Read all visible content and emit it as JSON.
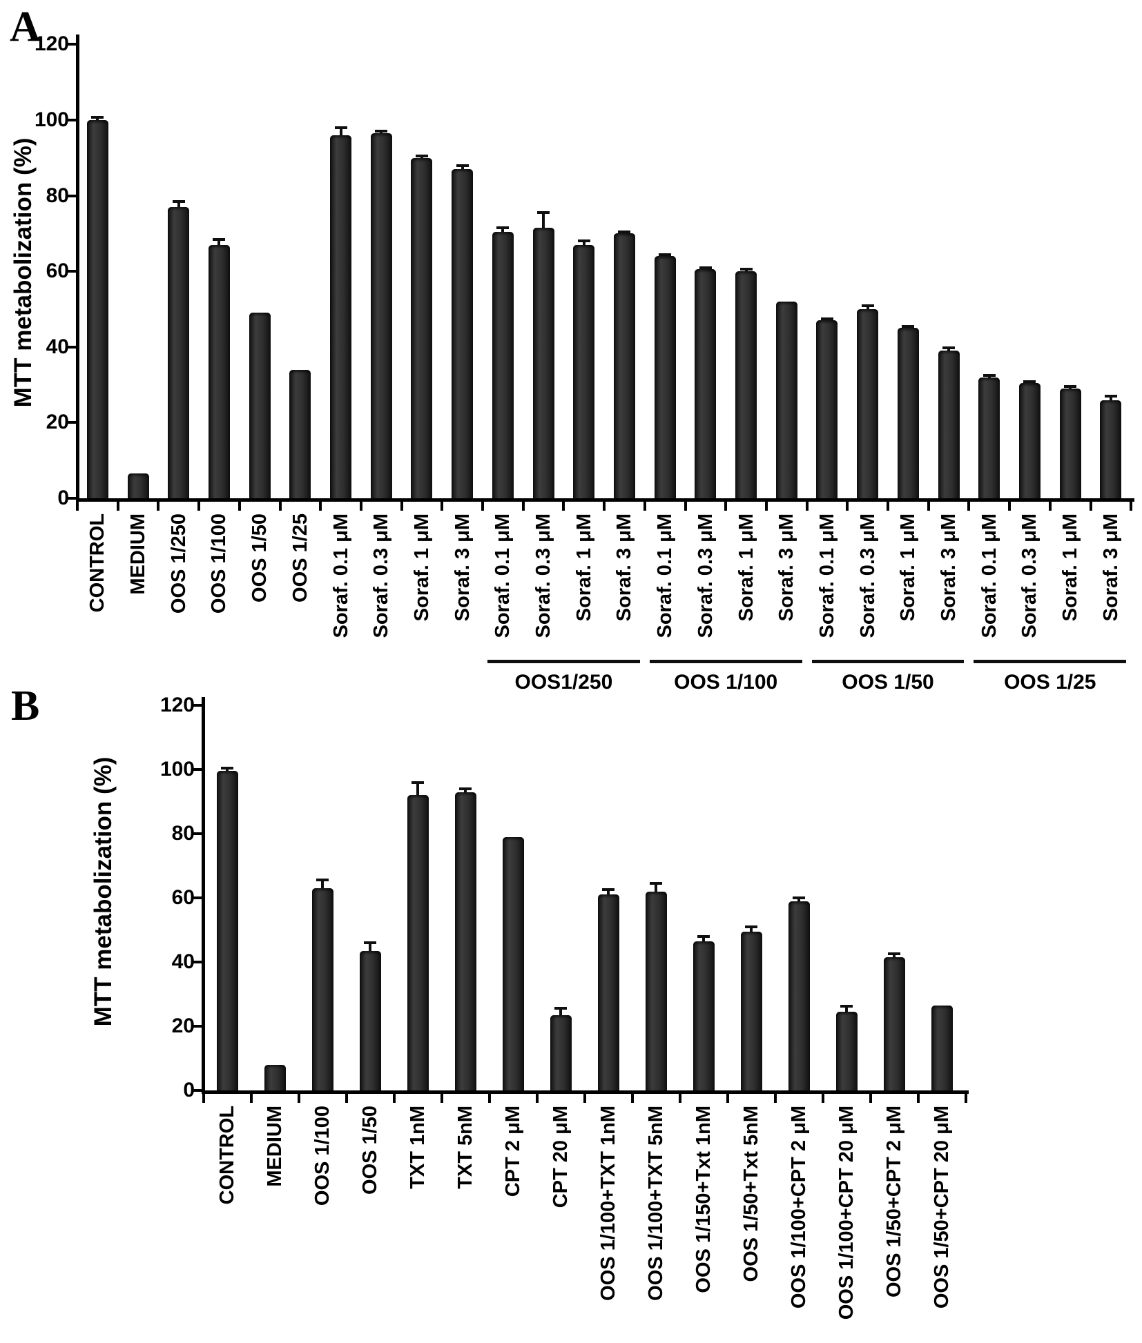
{
  "figure": {
    "background": "#ffffff",
    "bar_fill": "#2e2e2e",
    "bar_edge": "#0d0d0d",
    "axis_color": "#000000",
    "text_color": "#000000",
    "error_bar_color": "#0f0f0f"
  },
  "chart_data": [
    {
      "panel": "A",
      "type": "bar",
      "title": "",
      "xlabel": "",
      "ylabel": "MTT metabolization (%)",
      "ylim": [
        0,
        120
      ],
      "yticks": [
        0,
        20,
        40,
        60,
        80,
        100,
        120
      ],
      "grid": false,
      "legend": false,
      "error_bars": true,
      "categories": [
        "CONTROL",
        "MEDIUM",
        "OOS 1/250",
        "OOS 1/100",
        "OOS 1/50",
        "OOS 1/25",
        "Soraf. 0.1 μM",
        "Soraf. 0.3 μM",
        "Soraf. 1 μM",
        "Soraf. 3 μM",
        "Soraf. 0.1 μM",
        "Soraf. 0.3 μM",
        "Soraf. 1 μM",
        "Soraf. 3 μM",
        "Soraf. 0.1 μM",
        "Soraf. 0.3 μM",
        "Soraf. 1 μM",
        "Soraf. 3 μM",
        "Soraf. 0.1 μM",
        "Soraf. 0.3 μM",
        "Soraf. 1 μM",
        "Soraf. 3 μM",
        "Soraf. 0.1 μM",
        "Soraf. 0.3 μM",
        "Soraf. 1 μM",
        "Soraf. 3 μM"
      ],
      "values": [
        100,
        6.5,
        77,
        67,
        49,
        34,
        96,
        96.5,
        90,
        87,
        70.5,
        71.5,
        67,
        70,
        64,
        60.5,
        60,
        52,
        47,
        50,
        45,
        39,
        32,
        30.5,
        29,
        26
      ],
      "errors": [
        0.8,
        0,
        1.5,
        1.5,
        0,
        0,
        2,
        0.6,
        0.6,
        1,
        1,
        4,
        1,
        0.5,
        0.5,
        0.5,
        0.5,
        0,
        0.5,
        1,
        0.5,
        0.7,
        0.4,
        0.4,
        0.5,
        1
      ],
      "groups": [
        {
          "label": "OOS1/250",
          "from": 10,
          "to": 13
        },
        {
          "label": "OOS 1/100",
          "from": 14,
          "to": 17
        },
        {
          "label": "OOS 1/50",
          "from": 18,
          "to": 21
        },
        {
          "label": "OOS 1/25",
          "from": 22,
          "to": 25
        }
      ]
    },
    {
      "panel": "B",
      "type": "bar",
      "title": "",
      "xlabel": "",
      "ylabel": "MTT metabolization (%)",
      "ylim": [
        0,
        120
      ],
      "yticks": [
        0,
        20,
        40,
        60,
        80,
        100,
        120
      ],
      "grid": false,
      "legend": false,
      "error_bars": true,
      "categories": [
        "CONTROL",
        "MEDIUM",
        "OOS 1/100",
        "OOS 1/50",
        "TXT 1nM",
        "TXT 5nM",
        "CPT 2 μM",
        "CPT 20 μM",
        "OOS 1/100+TXT 1nM",
        "OOS 1/100+TXT 5nM",
        "OOS 1/150+Txt 1nM",
        "OOS 1/50+Txt 5nM",
        "OOS 1/100+CPT 2 μM",
        "OOS 1/100+CPT 20 μM",
        "OOS 1/50+CPT 2 μM",
        "OOS 1/50+CPT 20 μM"
      ],
      "values": [
        99.5,
        8,
        63,
        43.5,
        92,
        93,
        79,
        23.5,
        61,
        62,
        46.5,
        49.5,
        59,
        24.5,
        41.5,
        26.5
      ],
      "errors": [
        1,
        0,
        2.5,
        2.5,
        4,
        1,
        0,
        2,
        1.5,
        2.5,
        1.5,
        1.5,
        1,
        1.7,
        1,
        0
      ],
      "groups": []
    }
  ]
}
